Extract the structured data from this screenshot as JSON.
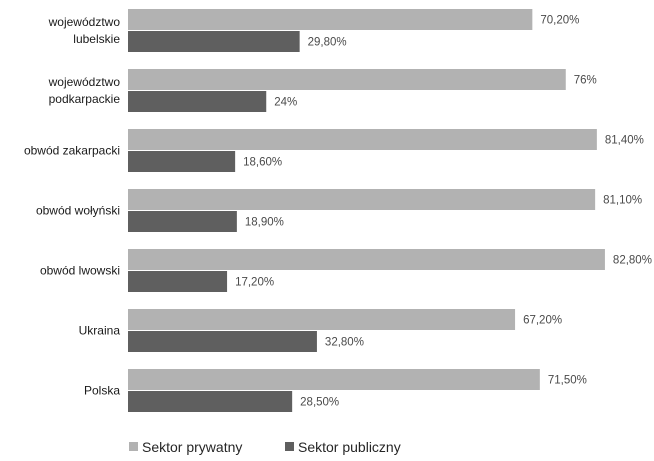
{
  "chart_data": {
    "type": "bar",
    "orientation": "horizontal",
    "title": "",
    "xlabel": "",
    "ylabel": "",
    "categories": [
      "województwo lubelskie",
      "województwo podkarpackie",
      "obwód zakarpacki",
      "obwód wołyński",
      "obwód lwowski",
      "Ukraina",
      "Polska"
    ],
    "category_lines": [
      [
        "województwo",
        "lubelskie"
      ],
      [
        "województwo",
        "podkarpackie"
      ],
      [
        "obwód zakarpacki"
      ],
      [
        "obwód wołyński"
      ],
      [
        "obwód lwowski"
      ],
      [
        "Ukraina"
      ],
      [
        "Polska"
      ]
    ],
    "series": [
      {
        "name": "Sektor prywatny",
        "color": "#b2b2b2",
        "values": [
          70.2,
          76,
          81.4,
          81.1,
          82.8,
          67.2,
          71.5
        ],
        "labels": [
          "70,20%",
          "76%",
          "81,40%",
          "81,10%",
          "82,80%",
          "67,20%",
          "71,50%"
        ]
      },
      {
        "name": "Sektor publiczny",
        "color": "#5f5f5f",
        "values": [
          29.8,
          24,
          18.6,
          18.9,
          17.2,
          32.8,
          28.5
        ],
        "labels": [
          "29,80%",
          "24%",
          "18,60%",
          "18,90%",
          "17,20%",
          "32,80%",
          "28,50%"
        ]
      }
    ],
    "xlim": [
      0,
      100
    ],
    "grid": false,
    "legend": "bottom"
  }
}
